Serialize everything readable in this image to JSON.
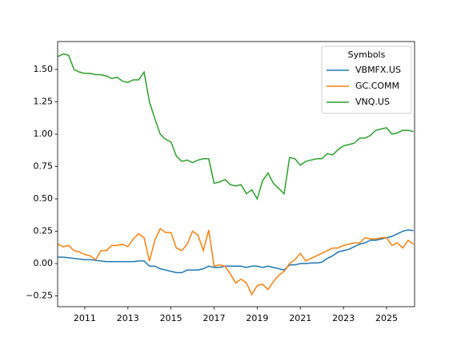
{
  "chart_data": {
    "type": "line",
    "x": [
      2009.75,
      2010.0,
      2010.25,
      2010.5,
      2010.75,
      2011.0,
      2011.25,
      2011.5,
      2011.75,
      2012.0,
      2012.25,
      2012.5,
      2012.75,
      2013.0,
      2013.25,
      2013.5,
      2013.75,
      2014.0,
      2014.25,
      2014.5,
      2014.75,
      2015.0,
      2015.25,
      2015.5,
      2015.75,
      2016.0,
      2016.25,
      2016.5,
      2016.75,
      2017.0,
      2017.25,
      2017.5,
      2017.75,
      2018.0,
      2018.25,
      2018.5,
      2018.75,
      2019.0,
      2019.25,
      2019.5,
      2019.75,
      2020.0,
      2020.25,
      2020.5,
      2020.75,
      2021.0,
      2021.25,
      2021.5,
      2021.75,
      2022.0,
      2022.25,
      2022.5,
      2022.75,
      2023.0,
      2023.25,
      2023.5,
      2023.75,
      2024.0,
      2024.25,
      2024.5,
      2024.75,
      2025.0,
      2025.25,
      2025.5,
      2025.75,
      2026.0,
      2026.25
    ],
    "series": [
      {
        "name": "VBMFX.US",
        "color": "#1f77b4",
        "values": [
          0.05,
          0.05,
          0.045,
          0.04,
          0.035,
          0.03,
          0.03,
          0.025,
          0.02,
          0.015,
          0.015,
          0.015,
          0.015,
          0.015,
          0.015,
          0.02,
          0.02,
          -0.02,
          -0.02,
          -0.04,
          -0.05,
          -0.06,
          -0.07,
          -0.07,
          -0.05,
          -0.05,
          -0.05,
          -0.04,
          -0.02,
          -0.03,
          -0.03,
          -0.02,
          -0.02,
          -0.02,
          -0.02,
          -0.03,
          -0.02,
          -0.02,
          -0.03,
          -0.02,
          -0.03,
          -0.04,
          -0.05,
          -0.01,
          -0.01,
          0.0,
          0.0,
          0.005,
          0.005,
          0.01,
          0.04,
          0.06,
          0.09,
          0.1,
          0.11,
          0.13,
          0.15,
          0.16,
          0.18,
          0.18,
          0.19,
          0.2,
          0.21,
          0.23,
          0.25,
          0.26,
          0.255
        ]
      },
      {
        "name": "GC.COMM",
        "color": "#ff7f0e",
        "values": [
          0.15,
          0.13,
          0.14,
          0.1,
          0.09,
          0.07,
          0.06,
          0.03,
          0.1,
          0.1,
          0.14,
          0.14,
          0.15,
          0.13,
          0.19,
          0.23,
          0.2,
          0.02,
          0.18,
          0.27,
          0.24,
          0.24,
          0.12,
          0.1,
          0.15,
          0.25,
          0.22,
          0.1,
          0.26,
          -0.02,
          -0.01,
          -0.02,
          -0.08,
          -0.15,
          -0.12,
          -0.15,
          -0.24,
          -0.17,
          -0.16,
          -0.2,
          -0.14,
          -0.09,
          -0.06,
          0.0,
          0.03,
          0.08,
          0.02,
          0.04,
          0.06,
          0.08,
          0.1,
          0.12,
          0.12,
          0.14,
          0.15,
          0.16,
          0.16,
          0.2,
          0.19,
          0.19,
          0.2,
          0.2,
          0.14,
          0.16,
          0.12,
          0.18,
          0.15
        ]
      },
      {
        "name": "VNQ.US",
        "color": "#2ca02c",
        "values": [
          1.6,
          1.62,
          1.61,
          1.5,
          1.48,
          1.47,
          1.47,
          1.46,
          1.46,
          1.45,
          1.43,
          1.44,
          1.41,
          1.4,
          1.42,
          1.42,
          1.48,
          1.25,
          1.12,
          1.0,
          0.96,
          0.94,
          0.83,
          0.79,
          0.8,
          0.78,
          0.8,
          0.81,
          0.81,
          0.62,
          0.63,
          0.65,
          0.61,
          0.6,
          0.61,
          0.54,
          0.57,
          0.5,
          0.64,
          0.7,
          0.62,
          0.58,
          0.54,
          0.82,
          0.81,
          0.76,
          0.79,
          0.8,
          0.81,
          0.81,
          0.85,
          0.84,
          0.88,
          0.91,
          0.92,
          0.93,
          0.97,
          0.97,
          0.99,
          1.03,
          1.04,
          1.05,
          1.0,
          1.01,
          1.03,
          1.03,
          1.02
        ]
      }
    ],
    "xlim": [
      2009.74,
      2026.3
    ],
    "xticks": [
      2011,
      2013,
      2015,
      2017,
      2019,
      2021,
      2023,
      2025
    ],
    "ylim": [
      -0.333,
      1.716
    ],
    "yticks": [
      {
        "value": -0.25,
        "label": "−0.25"
      },
      {
        "value": 0,
        "label": "0.00"
      },
      0.25,
      {
        "value": 0.5,
        "label": "0.50"
      },
      0.75,
      {
        "value": 1,
        "label": "1.00"
      },
      1.25,
      {
        "value": 1.5,
        "label": "1.50"
      }
    ],
    "legend_title": "Symbols",
    "legend": "upper right",
    "grid": false
  }
}
